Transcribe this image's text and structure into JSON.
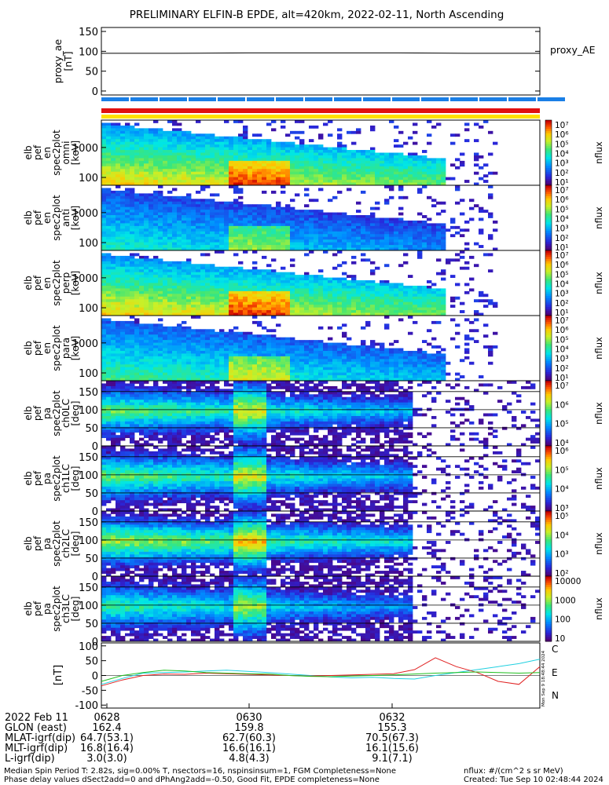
{
  "title": "PRELIMINARY ELFIN-B EPDE, alt=420km, 2022-02-11, North Ascending",
  "colors": {
    "bar_blue": "#1a7fe6",
    "bar_red": "#e01010",
    "bar_yellow": "#ffe000",
    "trace_C": "#20d0e0",
    "trace_E": "#e02020",
    "trace_N": "#20c020"
  },
  "chart_data": [
    {
      "type": "line",
      "panel": "proxy_ae",
      "ylabel": [
        "proxy_ae",
        "[nT]"
      ],
      "legend": "proxy_AE",
      "yticks": [
        "150",
        "100",
        "50",
        "0"
      ],
      "ylim": [
        -10,
        160
      ],
      "series": [
        {
          "name": "proxy_AE",
          "values": [
            95,
            95,
            96,
            96,
            96,
            95,
            95
          ]
        }
      ]
    },
    {
      "type": "heatmap",
      "panel": "elb_pef_en_spec2plot_omni",
      "ylabel": [
        "elb",
        "pef",
        "en",
        "spec2plot",
        "omni",
        "[keV]"
      ],
      "yticks": [
        "1000",
        "100"
      ],
      "yscale": "log",
      "colorbar": {
        "label": "nflux",
        "ticks": [
          "10⁷",
          "10⁶",
          "10⁵",
          "10⁴",
          "10³",
          "10²",
          "10¹"
        ]
      }
    },
    {
      "type": "heatmap",
      "panel": "elb_pef_en_spec2plot_anti",
      "ylabel": [
        "elb",
        "pef",
        "en",
        "spec2plot",
        "anti",
        "[keV]"
      ],
      "yticks": [
        "1000",
        "100"
      ],
      "yscale": "log",
      "colorbar": {
        "label": "nflux",
        "ticks": [
          "10⁷",
          "10⁶",
          "10⁵",
          "10⁴",
          "10³",
          "10²",
          "10¹"
        ]
      }
    },
    {
      "type": "heatmap",
      "panel": "elb_pef_en_spec2plot_perp",
      "ylabel": [
        "elb",
        "pef",
        "en",
        "spec2plot",
        "perp",
        "[keV]"
      ],
      "yticks": [
        "1000",
        "100"
      ],
      "yscale": "log",
      "colorbar": {
        "label": "nflux",
        "ticks": [
          "10⁷",
          "10⁶",
          "10⁵",
          "10⁴",
          "10³",
          "10²",
          "10¹"
        ]
      }
    },
    {
      "type": "heatmap",
      "panel": "elb_pef_en_spec2plot_para",
      "ylabel": [
        "elb",
        "pef",
        "en",
        "spec2plot",
        "para",
        "[keV]"
      ],
      "yticks": [
        "1000",
        "100"
      ],
      "yscale": "log",
      "colorbar": {
        "label": "nflux",
        "ticks": [
          "10⁷",
          "10⁶",
          "10⁵",
          "10⁴",
          "10³",
          "10²",
          "10¹"
        ]
      }
    },
    {
      "type": "heatmap",
      "panel": "elb_pef_pa_spec2plot_ch0LC",
      "ylabel": [
        "elb",
        "pef",
        "pa",
        "spec2plot",
        "ch0LC",
        "[deg]"
      ],
      "yticks": [
        "150",
        "100",
        "50",
        "0"
      ],
      "ylim": [
        0,
        180
      ],
      "colorbar": {
        "label": "nflux",
        "ticks": [
          "10⁷",
          "10⁶",
          "10⁵",
          "10⁴"
        ]
      }
    },
    {
      "type": "heatmap",
      "panel": "elb_pef_pa_spec2plot_ch1LC",
      "ylabel": [
        "elb",
        "pef",
        "pa",
        "spec2plot",
        "ch1LC",
        "[deg]"
      ],
      "yticks": [
        "150",
        "100",
        "50",
        "0"
      ],
      "ylim": [
        0,
        180
      ],
      "colorbar": {
        "label": "nflux",
        "ticks": [
          "10⁶",
          "10⁵",
          "10⁴",
          "10³"
        ]
      }
    },
    {
      "type": "heatmap",
      "panel": "elb_pef_pa_spec2plot_ch2LC",
      "ylabel": [
        "elb",
        "pef",
        "pa",
        "spec2plot",
        "ch2LC",
        "[deg]"
      ],
      "yticks": [
        "150",
        "100",
        "50",
        "0"
      ],
      "ylim": [
        0,
        180
      ],
      "colorbar": {
        "label": "nflux",
        "ticks": [
          "10⁵",
          "10⁴",
          "10³",
          "10²"
        ]
      }
    },
    {
      "type": "heatmap",
      "panel": "elb_pef_pa_spec2plot_ch3LC",
      "ylabel": [
        "elb",
        "pef",
        "pa",
        "spec2plot",
        "ch3LC",
        "[deg]"
      ],
      "yticks": [
        "150",
        "100",
        "50",
        "0"
      ],
      "ylim": [
        0,
        180
      ],
      "colorbar": {
        "label": "nflux",
        "ticks": [
          "10000",
          "1000",
          "100",
          "10"
        ]
      }
    },
    {
      "type": "line",
      "panel": "magnetic_field",
      "ylabel": [
        "[nT]"
      ],
      "yticks": [
        "100",
        "50",
        "0",
        "-50",
        "-100"
      ],
      "ylim": [
        -110,
        110
      ],
      "legend": [
        "C",
        "E",
        "N"
      ],
      "series": [
        {
          "name": "C",
          "values": [
            -30,
            -10,
            8,
            10,
            12,
            15,
            18,
            14,
            10,
            5,
            0,
            -5,
            -8,
            -6,
            -10,
            -12,
            0,
            10,
            20,
            30,
            40,
            55
          ]
        },
        {
          "name": "E",
          "values": [
            -35,
            -15,
            0,
            5,
            4,
            8,
            6,
            4,
            2,
            0,
            -2,
            0,
            2,
            4,
            6,
            20,
            60,
            30,
            10,
            -20,
            -30,
            30
          ]
        },
        {
          "name": "N",
          "values": [
            -20,
            0,
            10,
            18,
            15,
            10,
            8,
            6,
            5,
            0,
            -3,
            -4,
            -2,
            0,
            2,
            5,
            8,
            10,
            12,
            10,
            8,
            10
          ]
        }
      ]
    }
  ],
  "stamp": "Mon Sep 9 18:48:44 2024",
  "time_axis": {
    "rows": [
      {
        "label": "2022 Feb 11",
        "values": [
          "0628",
          "0630",
          "0632"
        ]
      },
      {
        "label": "GLON (east)",
        "values": [
          "162.4",
          "159.8",
          "155.3"
        ]
      },
      {
        "label": "MLAT-igrf(dip)",
        "values": [
          "64.7(53.1)",
          "62.7(60.3)",
          "70.5(67.3)"
        ]
      },
      {
        "label": "MLT-igrf(dip)",
        "values": [
          "16.8(16.4)",
          "16.6(16.1)",
          "16.1(15.6)"
        ]
      },
      {
        "label": "L-igrf(dip)",
        "values": [
          "3.0(3.0)",
          "4.8(4.3)",
          "9.1(7.1)"
        ]
      }
    ]
  },
  "footer": {
    "left_line1": "Median Spin Period T: 2.82s, sig=0.00% T, nsectors=16, nspinsinsum=1, FGM Completeness=None",
    "left_line2": "Phase delay values dSect2add=0 and dPhAng2add=-0.50, Good Fit, EPDE completeness=None",
    "right_line1": "nflux: #/(cm^2 s sr MeV)",
    "right_line2": "Created: Tue Sep 10 02:48:44 2024"
  }
}
